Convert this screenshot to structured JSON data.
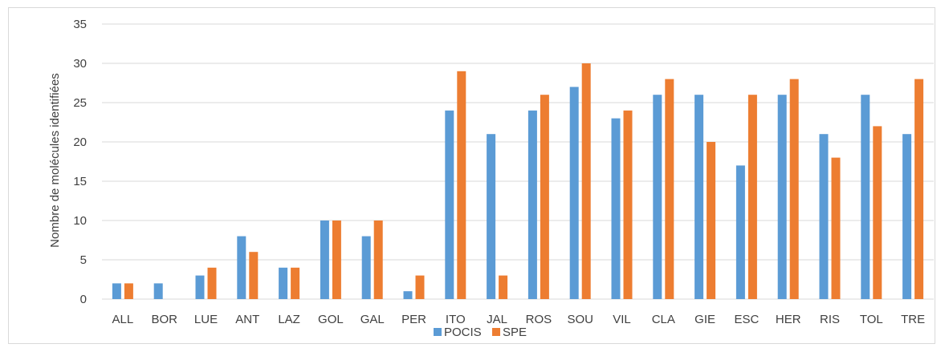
{
  "chart_data": {
    "type": "bar",
    "title": "",
    "xlabel": "",
    "ylabel": "Nombre de molécules identifiées",
    "ylim": [
      0,
      35
    ],
    "yticks": [
      0,
      5,
      10,
      15,
      20,
      25,
      30,
      35
    ],
    "grid": true,
    "legend_position": "bottom",
    "categories": [
      "ALL",
      "BOR",
      "LUE",
      "ANT",
      "LAZ",
      "GOL",
      "GAL",
      "PER",
      "ITO",
      "JAL",
      "ROS",
      "SOU",
      "VIL",
      "CLA",
      "GIE",
      "ESC",
      "HER",
      "RIS",
      "TOL",
      "TRE"
    ],
    "series": [
      {
        "name": "POCIS",
        "color": "#5b9bd5",
        "values": [
          2,
          2,
          3,
          8,
          4,
          10,
          8,
          1,
          24,
          21,
          24,
          27,
          23,
          26,
          26,
          17,
          26,
          21,
          26,
          21
        ]
      },
      {
        "name": "SPE",
        "color": "#ed7d31",
        "values": [
          2,
          0,
          4,
          6,
          4,
          10,
          10,
          3,
          29,
          3,
          26,
          30,
          24,
          28,
          20,
          26,
          28,
          18,
          22,
          28
        ]
      }
    ]
  }
}
